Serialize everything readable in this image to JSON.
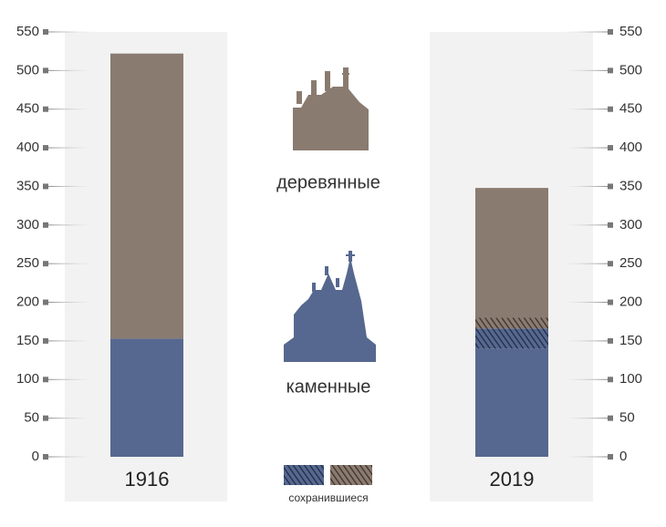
{
  "chart_data": {
    "type": "stacked-bar",
    "categories": [
      "1916",
      "2019"
    ],
    "series": [
      {
        "name": "каменные",
        "color": "#56688f",
        "values": [
          153,
          140
        ]
      },
      {
        "color": "#56688f",
        "hatched": true,
        "values": [
          0,
          26
        ]
      },
      {
        "color": "#8a7b70",
        "hatched": true,
        "values": [
          0,
          14
        ]
      },
      {
        "name": "деревянные",
        "color": "#8a7b70",
        "values": [
          369,
          168
        ]
      }
    ],
    "legend_label": "сохранившиеся",
    "ylim": [
      0,
      550
    ],
    "yticks": [
      0,
      50,
      100,
      150,
      200,
      250,
      300,
      350,
      400,
      450,
      500,
      550
    ],
    "y2lim": [
      0,
      550
    ],
    "y2ticks": [
      0,
      50,
      100,
      150,
      200,
      250,
      300,
      350,
      400,
      450,
      500,
      550
    ]
  }
}
